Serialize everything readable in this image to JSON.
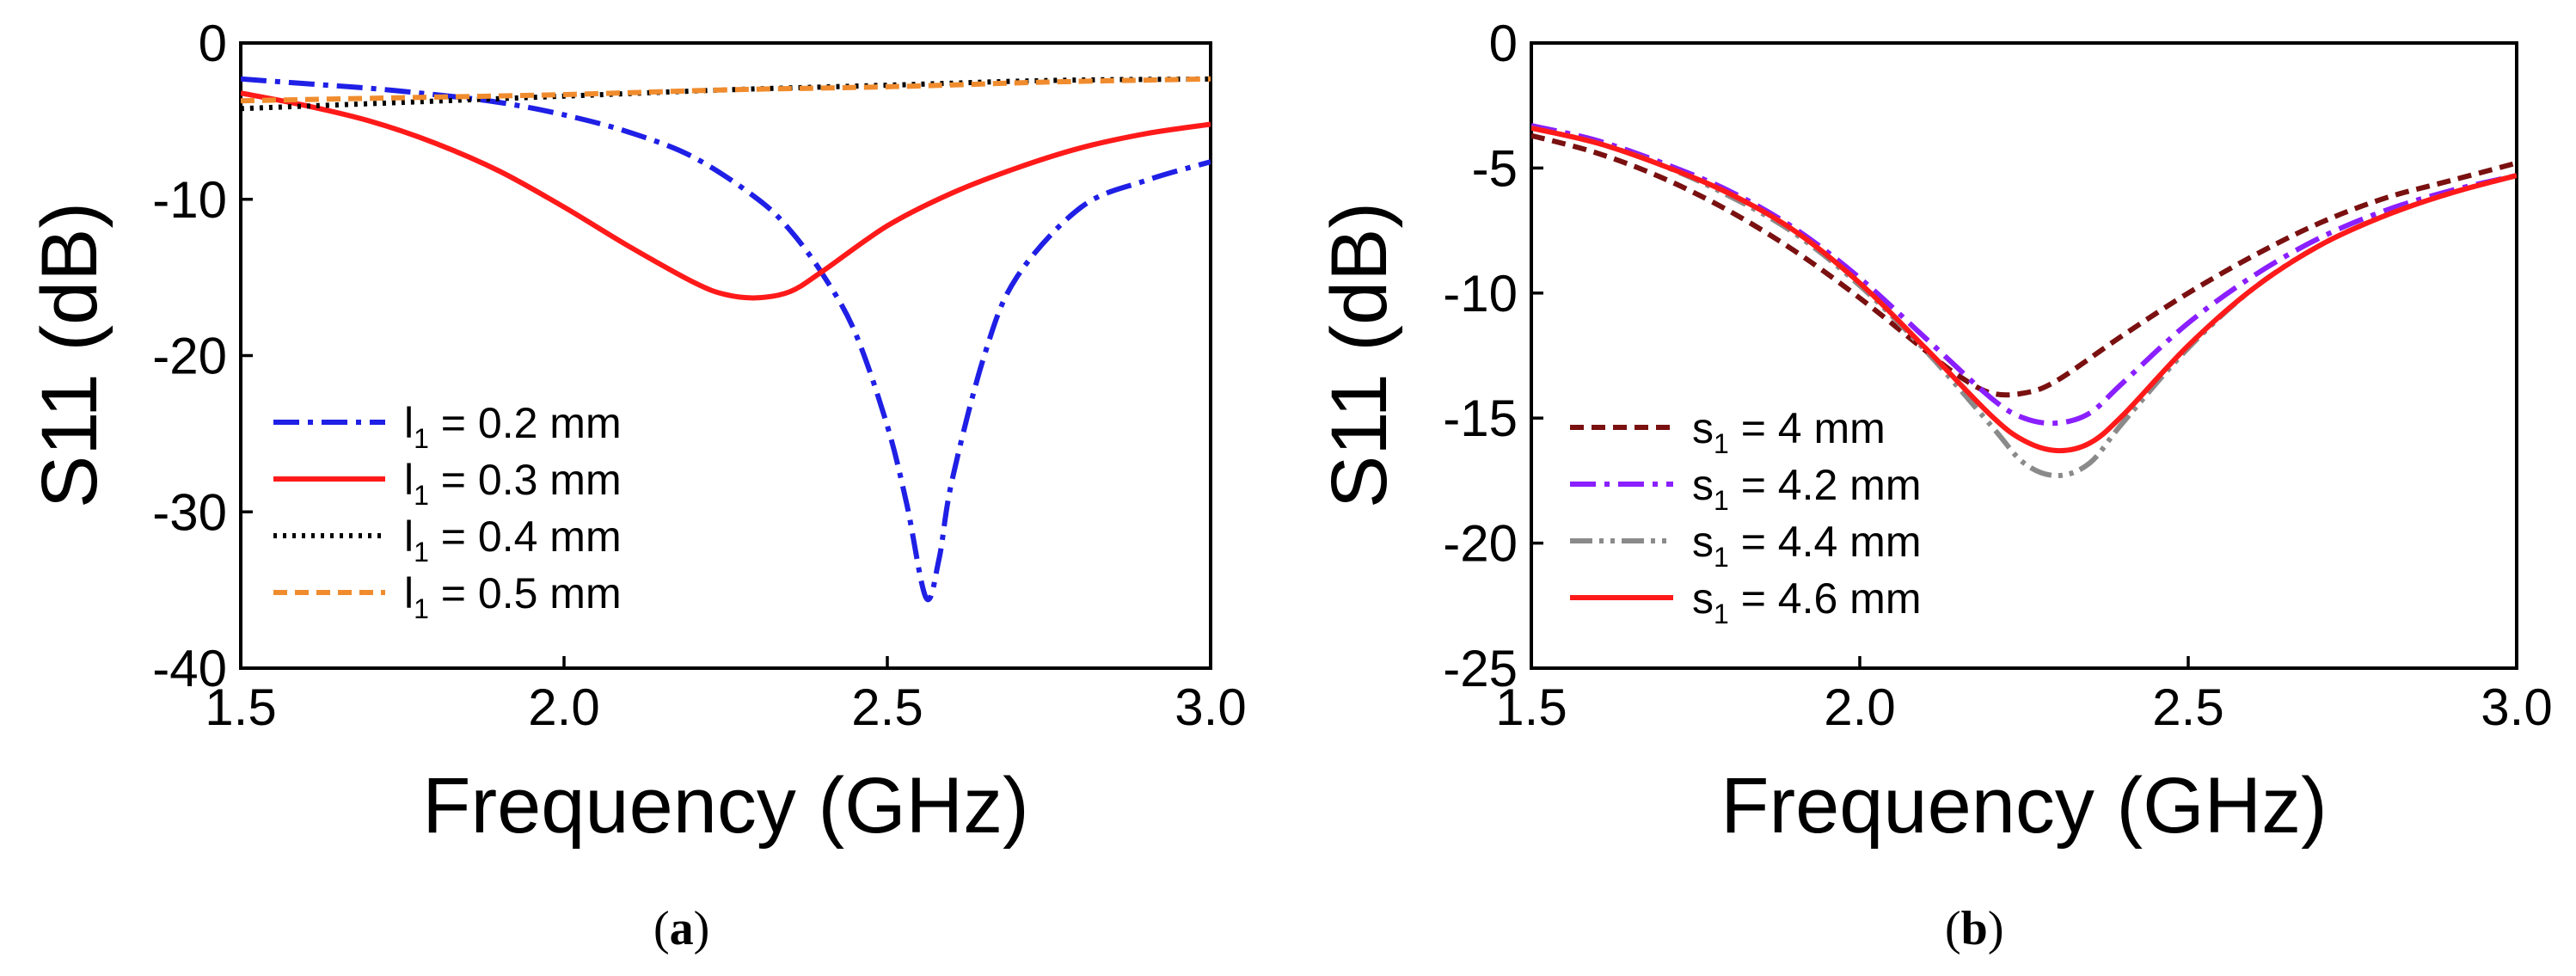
{
  "chart_data": [
    {
      "type": "line",
      "caption_letter": "a",
      "xlabel": "Frequency (GHz)",
      "ylabel": "S11 (dB)",
      "xlim": [
        1.5,
        3.0
      ],
      "ylim": [
        -40,
        0
      ],
      "xticks": [
        "1.5",
        "2.0",
        "2.5",
        "3.0"
      ],
      "yticks": [
        "0",
        "-10",
        "-20",
        "-30",
        "-40"
      ],
      "legend_position": "lower-left",
      "legend_symbol": "l",
      "series": [
        {
          "name": "l1 = 0.2 mm",
          "legend_pre": "l",
          "legend_sub": "1",
          "legend_post": " = 0.2 mm",
          "color": "#1f1fe6",
          "dash": "dashdot",
          "x": [
            1.5,
            1.6,
            1.7,
            1.8,
            1.9,
            2.0,
            2.1,
            2.2,
            2.3,
            2.35,
            2.4,
            2.45,
            2.5,
            2.53,
            2.56,
            2.58,
            2.6,
            2.65,
            2.7,
            2.8,
            2.9,
            3.0
          ],
          "y": [
            -2.3,
            -2.6,
            -2.9,
            -3.3,
            -3.8,
            -4.6,
            -5.7,
            -7.3,
            -10.0,
            -12.0,
            -14.8,
            -18.5,
            -24.5,
            -29.5,
            -35.5,
            -33.0,
            -28.0,
            -20.0,
            -15.0,
            -10.5,
            -8.8,
            -7.6
          ]
        },
        {
          "name": "l1 = 0.3 mm",
          "legend_pre": "l",
          "legend_sub": "1",
          "legend_post": " = 0.3 mm",
          "color": "#ff1a1a",
          "dash": "solid",
          "x": [
            1.5,
            1.6,
            1.7,
            1.8,
            1.9,
            2.0,
            2.1,
            2.2,
            2.25,
            2.3,
            2.35,
            2.4,
            2.5,
            2.6,
            2.7,
            2.8,
            2.9,
            3.0
          ],
          "y": [
            -3.2,
            -4.0,
            -5.0,
            -6.4,
            -8.2,
            -10.5,
            -13.0,
            -15.3,
            -16.1,
            -16.3,
            -15.9,
            -14.6,
            -11.7,
            -9.6,
            -8.0,
            -6.7,
            -5.8,
            -5.2
          ]
        },
        {
          "name": "l1 = 0.4 mm",
          "legend_pre": "l",
          "legend_sub": "1",
          "legend_post": " = 0.4 mm",
          "color": "#000000",
          "dash": "dotted",
          "x": [
            1.5,
            1.75,
            2.0,
            2.25,
            2.5,
            2.75,
            3.0
          ],
          "y": [
            -4.2,
            -3.8,
            -3.4,
            -3.0,
            -2.7,
            -2.4,
            -2.3
          ]
        },
        {
          "name": "l1 = 0.5 mm",
          "legend_pre": "l",
          "legend_sub": "1",
          "legend_post": " = 0.5 mm",
          "color": "#f08c2e",
          "dash": "dashed",
          "x": [
            1.5,
            1.75,
            2.0,
            2.25,
            2.5,
            2.75,
            3.0
          ],
          "y": [
            -3.7,
            -3.5,
            -3.3,
            -3.0,
            -2.8,
            -2.5,
            -2.3
          ]
        }
      ]
    },
    {
      "type": "line",
      "caption_letter": "b",
      "xlabel": "Frequency (GHz)",
      "ylabel": "S11 (dB)",
      "xlim": [
        1.5,
        3.0
      ],
      "ylim": [
        -25,
        0
      ],
      "xticks": [
        "1.5",
        "2.0",
        "2.5",
        "3.0"
      ],
      "yticks": [
        "0",
        "-5",
        "-10",
        "-15",
        "-20",
        "-25"
      ],
      "legend_position": "lower-left",
      "series": [
        {
          "name": "s1 = 4 mm",
          "legend_pre": "s",
          "legend_sub": "1",
          "legend_post": " = 4 mm",
          "color": "#7a1010",
          "dash": "dashed",
          "x": [
            1.5,
            1.6,
            1.7,
            1.8,
            1.9,
            2.0,
            2.1,
            2.15,
            2.2,
            2.25,
            2.3,
            2.4,
            2.5,
            2.6,
            2.7,
            2.8,
            2.9,
            3.0
          ],
          "y": [
            -3.7,
            -4.4,
            -5.4,
            -6.7,
            -8.3,
            -10.2,
            -12.3,
            -13.3,
            -14.0,
            -14.0,
            -13.5,
            -11.7,
            -10.0,
            -8.5,
            -7.2,
            -6.2,
            -5.5,
            -4.8
          ]
        },
        {
          "name": "s1 = 4.2 mm",
          "legend_pre": "s",
          "legend_sub": "1",
          "legend_post": " = 4.2 mm",
          "color": "#8a1fff",
          "dash": "dashdot",
          "x": [
            1.5,
            1.6,
            1.7,
            1.8,
            1.9,
            2.0,
            2.1,
            2.2,
            2.25,
            2.3,
            2.35,
            2.4,
            2.5,
            2.6,
            2.7,
            2.8,
            2.9,
            3.0
          ],
          "y": [
            -3.3,
            -3.9,
            -4.8,
            -5.9,
            -7.4,
            -9.4,
            -11.8,
            -14.2,
            -15.0,
            -15.2,
            -14.8,
            -13.6,
            -11.2,
            -9.3,
            -7.8,
            -6.7,
            -5.9,
            -5.3
          ]
        },
        {
          "name": "s1 = 4.4 mm",
          "legend_pre": "s",
          "legend_sub": "1",
          "legend_post": " = 4.4 mm",
          "color": "#8a8a8a",
          "dash": "dashdotdot",
          "x": [
            1.5,
            1.6,
            1.7,
            1.8,
            1.9,
            2.0,
            2.1,
            2.2,
            2.25,
            2.3,
            2.35,
            2.4,
            2.5,
            2.6,
            2.7,
            2.8,
            2.9,
            3.0
          ],
          "y": [
            -3.4,
            -4.0,
            -4.9,
            -6.1,
            -7.6,
            -9.7,
            -12.3,
            -15.3,
            -16.8,
            -17.3,
            -16.8,
            -15.2,
            -12.2,
            -9.8,
            -8.1,
            -6.9,
            -6.0,
            -5.3
          ]
        },
        {
          "name": "s1 = 4.6 mm",
          "legend_pre": "s",
          "legend_sub": "1",
          "legend_post": " = 4.6 mm",
          "color": "#ff1a1a",
          "dash": "solid",
          "x": [
            1.5,
            1.6,
            1.7,
            1.8,
            1.9,
            2.0,
            2.1,
            2.2,
            2.25,
            2.3,
            2.35,
            2.4,
            2.5,
            2.6,
            2.7,
            2.8,
            2.9,
            3.0
          ],
          "y": [
            -3.4,
            -4.0,
            -4.9,
            -6.0,
            -7.5,
            -9.6,
            -12.2,
            -14.9,
            -15.9,
            -16.3,
            -16.0,
            -14.9,
            -12.1,
            -9.8,
            -8.1,
            -6.9,
            -6.0,
            -5.3
          ]
        }
      ]
    }
  ]
}
